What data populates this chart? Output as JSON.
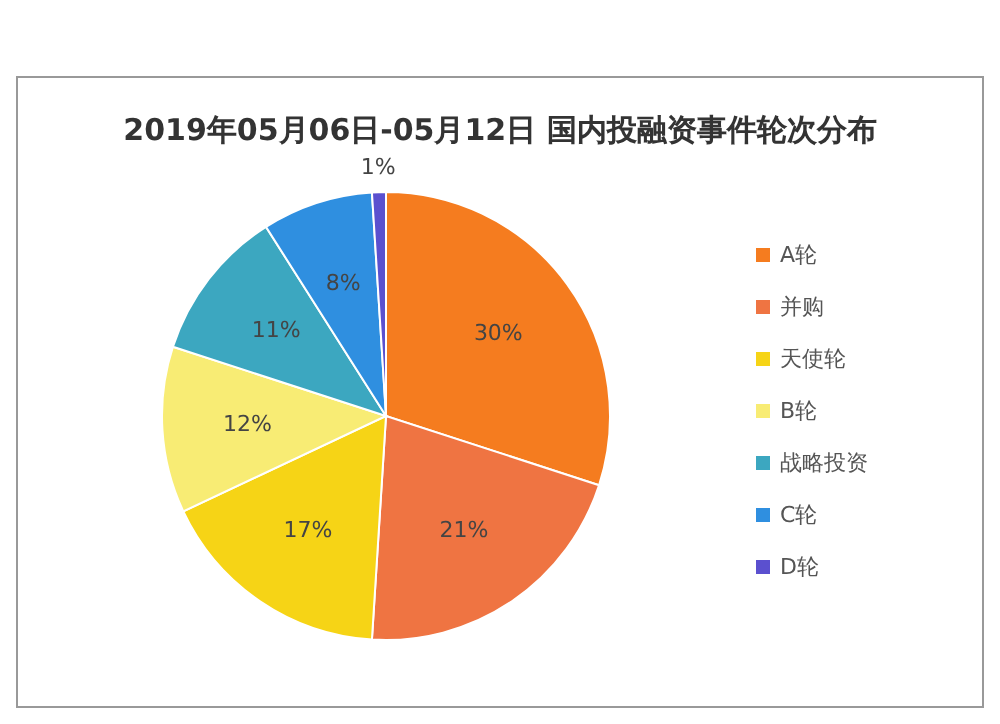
{
  "chart_data": {
    "type": "pie",
    "title": "2019年05月06日-05月12日 国内投融资事件轮次分布",
    "categories": [
      "A轮",
      "并购",
      "天使轮",
      "B轮",
      "战略投资",
      "C轮",
      "D轮"
    ],
    "values": [
      30,
      21,
      17,
      12,
      11,
      8,
      1
    ],
    "colors": [
      "#f57c1f",
      "#ef7442",
      "#f6d416",
      "#f8ec74",
      "#3ca7c0",
      "#2f8fe0",
      "#5b50cf"
    ],
    "value_labels": [
      "30%",
      "21%",
      "17%",
      "12%",
      "11%",
      "8%",
      "1%"
    ],
    "legend": "right"
  }
}
